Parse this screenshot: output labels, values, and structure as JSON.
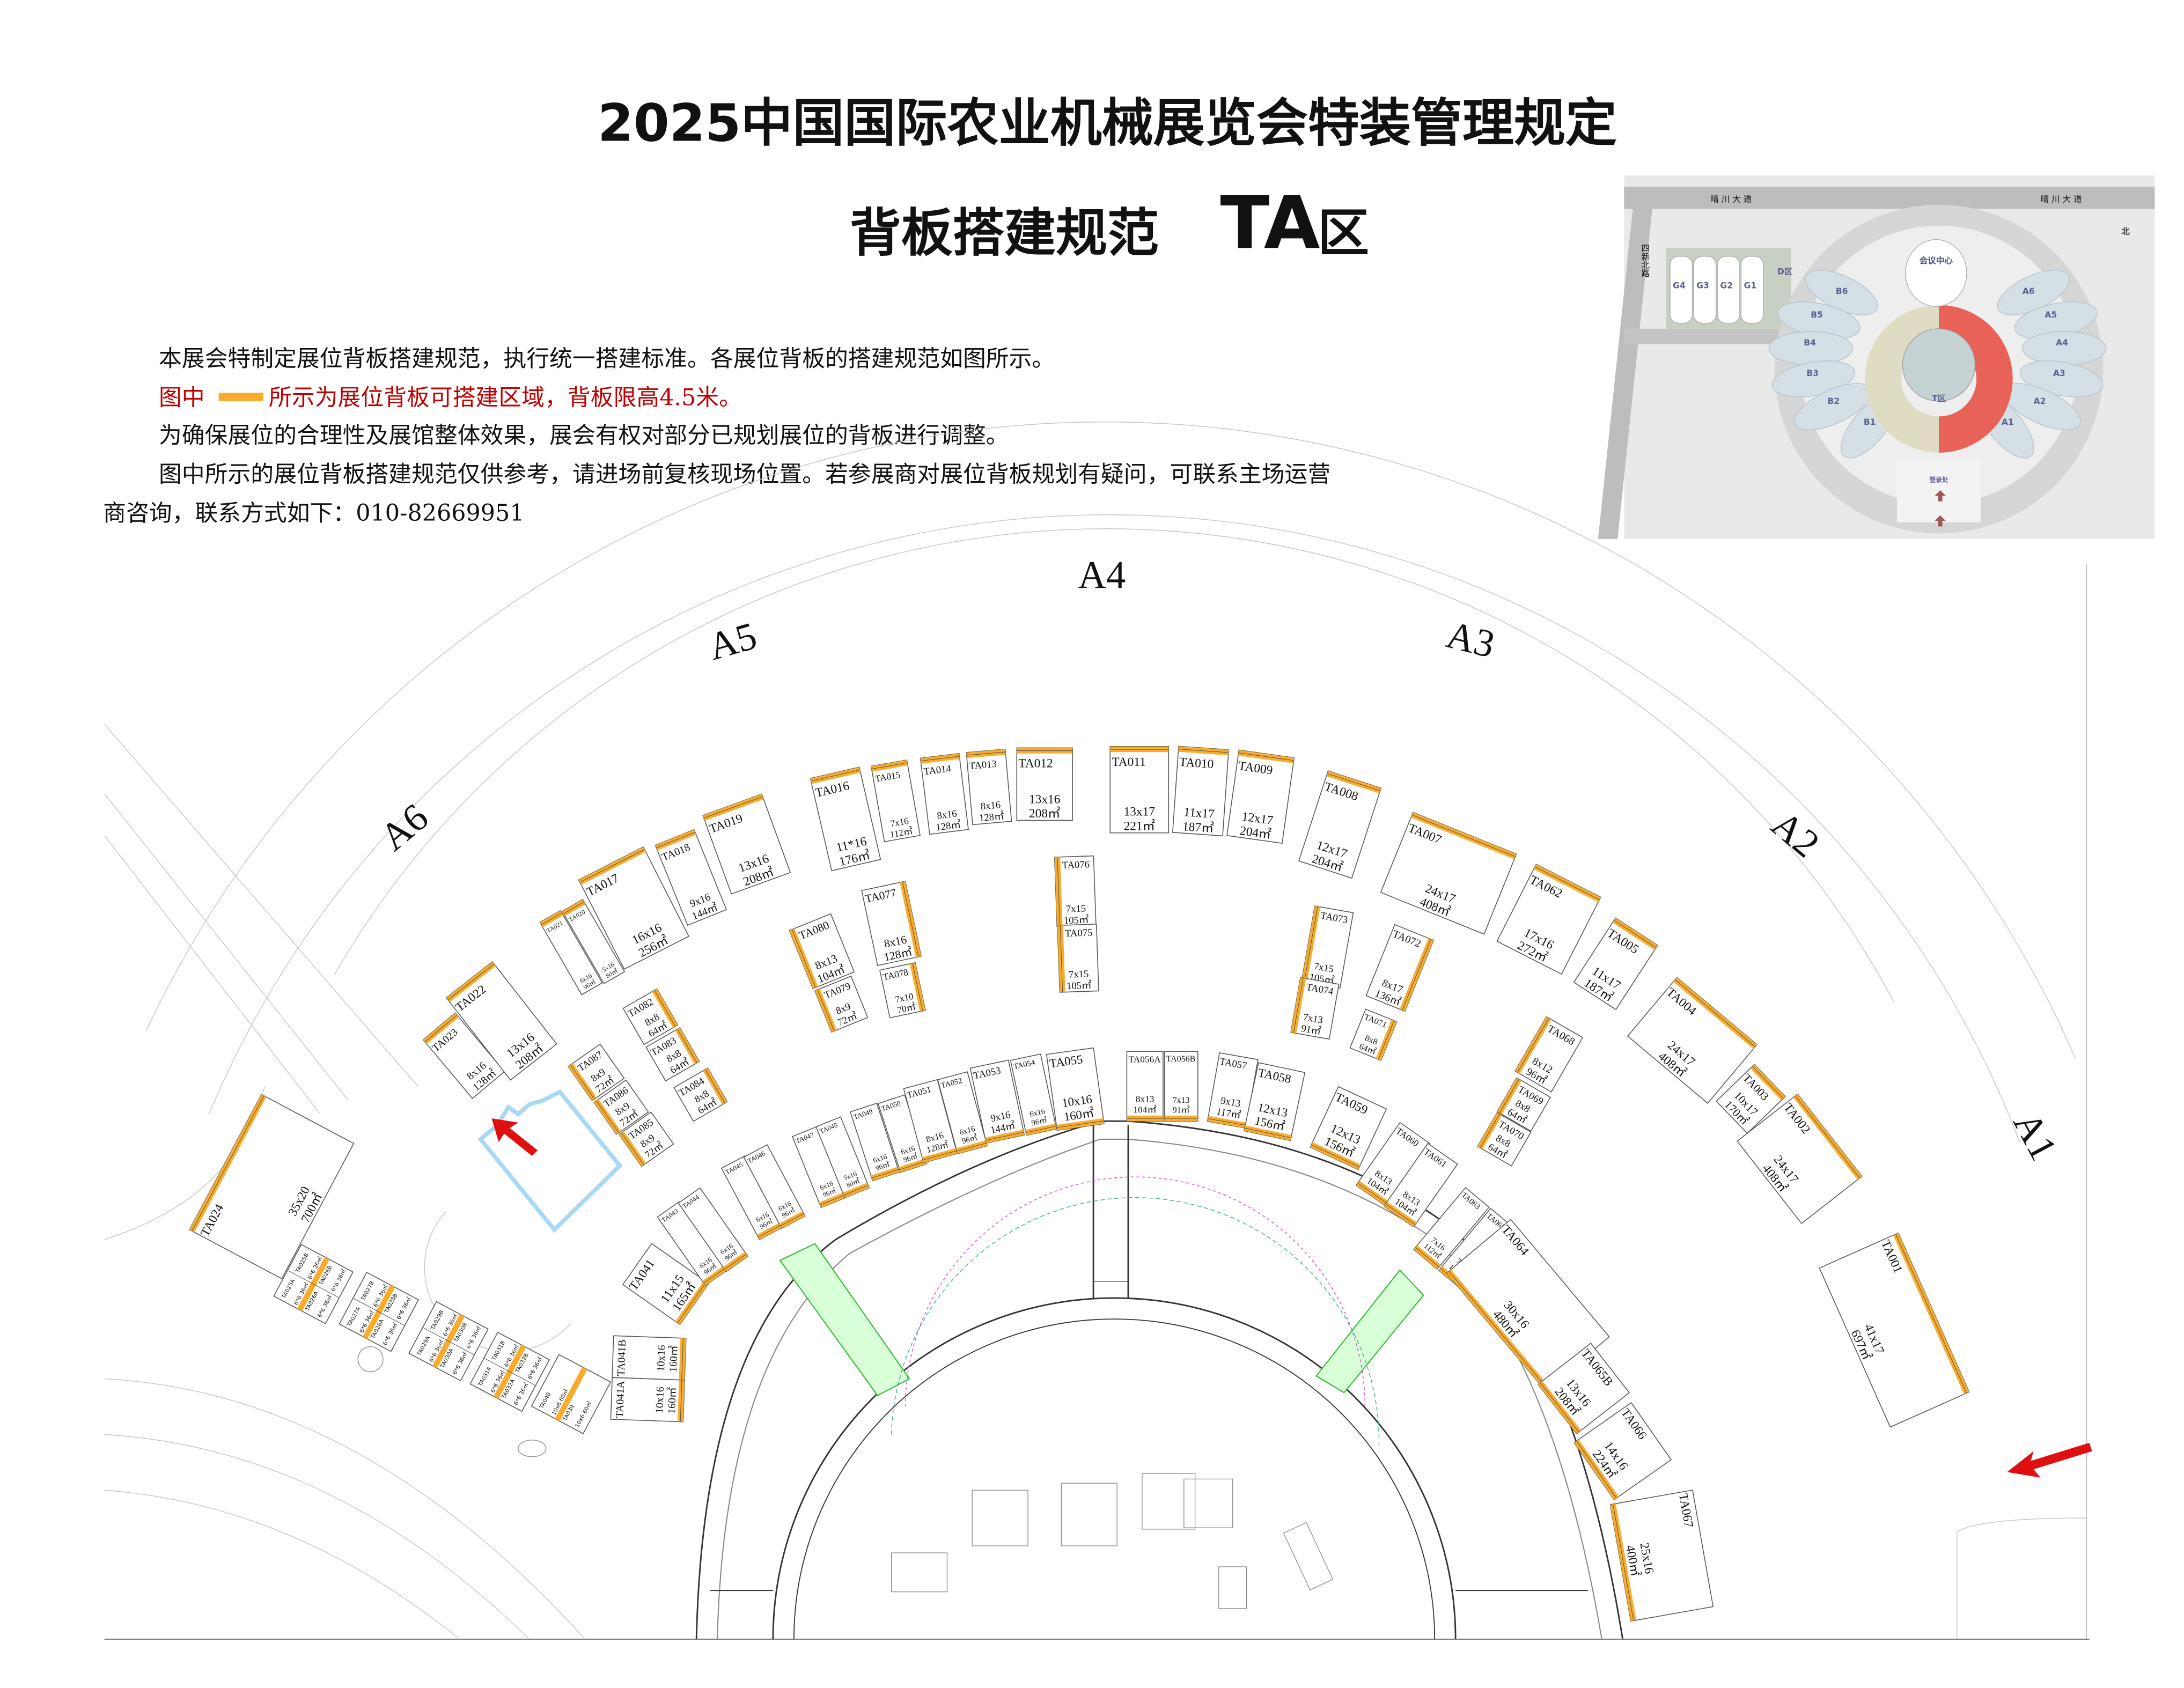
{
  "header": {
    "title": "2025中国国际农业机械展览会特装管理规定",
    "subtitle_prefix": "背板搭建规范",
    "subtitle_zone": "TA",
    "subtitle_suffix": "区"
  },
  "notes": {
    "line1": "本展会特制定展位背板搭建规范，执行统一搭建标准。各展位背板的搭建规范如图所示。",
    "legend_prefix": "图中",
    "legend_suffix": "所示为展位背板可搭建区域，背板限高4.5米。",
    "line3": "为确保展位的合理性及展馆整体效果，展会有权对部分已规划展位的背板进行调整。",
    "line4": "图中所示的展位背板搭建规范仅供参考，请进场前复核现场位置。若参展商对展位背板规划有疑问，可联系主场运营",
    "line5": "商咨询，联系方式如下：010-82669951"
  },
  "colors": {
    "backboard": "#f9ac2c",
    "legend_text": "#c00000",
    "highlight_zone": "#e8625a",
    "entrance_outline": "#a8d8f5",
    "arrow": "#e01010",
    "green_area": "#39e639"
  },
  "halls": [
    "A1",
    "A2",
    "A3",
    "A4",
    "A5",
    "A6"
  ],
  "inset_map": {
    "roads": [
      "晴 川 大 道",
      "晴 川 大 道",
      "四新北路"
    ],
    "buildings": [
      "会议中心",
      "D区",
      "G4",
      "G3",
      "G2",
      "G1",
      "登录处"
    ],
    "halls_b": [
      "B6",
      "B5",
      "B4",
      "B3",
      "B2",
      "B1"
    ],
    "halls_a": [
      "A6",
      "A5",
      "A4",
      "A3",
      "A2",
      "A1"
    ],
    "zone": "T区",
    "north": "北"
  },
  "booths": {
    "outer": [
      {
        "id": "TA023",
        "dims": "8x16",
        "area": "128㎡"
      },
      {
        "id": "TA022",
        "dims": "13x16",
        "area": "208㎡"
      },
      {
        "id": "TA021",
        "dims": "6x16",
        "area": "96㎡"
      },
      {
        "id": "TA020",
        "dims": "5x16",
        "area": "80㎡"
      },
      {
        "id": "TA017",
        "dims": "16x16",
        "area": "256㎡"
      },
      {
        "id": "TA018",
        "dims": "9x16",
        "area": "144㎡"
      },
      {
        "id": "TA019",
        "dims": "13x16",
        "area": "208㎡"
      },
      {
        "id": "TA016",
        "dims": "11*16",
        "area": "176㎡"
      },
      {
        "id": "TA015",
        "dims": "7x16",
        "area": "112㎡"
      },
      {
        "id": "TA014",
        "dims": "8x16",
        "area": "128㎡"
      },
      {
        "id": "TA013",
        "dims": "8x16",
        "area": "128㎡"
      },
      {
        "id": "TA012",
        "dims": "13x16",
        "area": "208㎡"
      },
      {
        "id": "TA011",
        "dims": "13x17",
        "area": "221㎡"
      },
      {
        "id": "TA010",
        "dims": "11x17",
        "area": "187㎡"
      },
      {
        "id": "TA009",
        "dims": "12x17",
        "area": "204㎡"
      },
      {
        "id": "TA008",
        "dims": "12x17",
        "area": "204㎡"
      },
      {
        "id": "TA007",
        "dims": "24x17",
        "area": "408㎡"
      },
      {
        "id": "TA062",
        "dims": "17x16",
        "area": "272㎡"
      },
      {
        "id": "TA005",
        "dims": "11x17",
        "area": "187㎡"
      },
      {
        "id": "TA004",
        "dims": "24x17",
        "area": "408㎡"
      },
      {
        "id": "TA003",
        "dims": "10x17",
        "area": "170㎡"
      },
      {
        "id": "TA002",
        "dims": "24x17",
        "area": "408㎡"
      },
      {
        "id": "TA001",
        "dims": "41x17",
        "area": "697㎡"
      },
      {
        "id": "TA024",
        "dims": "35x20",
        "area": "700㎡"
      }
    ],
    "middle": [
      {
        "id": "TA076",
        "dims": "7x15",
        "area": "105㎡"
      },
      {
        "id": "TA075",
        "dims": "7x15",
        "area": "105㎡"
      },
      {
        "id": "TA077",
        "dims": "8x16",
        "area": "128㎡"
      },
      {
        "id": "TA078",
        "dims": "7x10",
        "area": "70㎡"
      },
      {
        "id": "TA080",
        "dims": "8x13",
        "area": "104㎡"
      },
      {
        "id": "TA079",
        "dims": "8x9",
        "area": "72㎡"
      },
      {
        "id": "TA082",
        "dims": "8x8",
        "area": "64㎡"
      },
      {
        "id": "TA083",
        "dims": "8x8",
        "area": "64㎡"
      },
      {
        "id": "TA084",
        "dims": "8x8",
        "area": "64㎡"
      },
      {
        "id": "TA087",
        "dims": "8x9",
        "area": "72㎡"
      },
      {
        "id": "TA086",
        "dims": "8x9",
        "area": "72㎡"
      },
      {
        "id": "TA085",
        "dims": "8x9",
        "area": "72㎡"
      },
      {
        "id": "TA073",
        "dims": "7x15",
        "area": "105㎡"
      },
      {
        "id": "TA074",
        "dims": "7x13",
        "area": "91㎡"
      },
      {
        "id": "TA072",
        "dims": "8x17",
        "area": "136㎡"
      },
      {
        "id": "TA071",
        "dims": "8x8",
        "area": "64㎡"
      },
      {
        "id": "TA068",
        "dims": "8x12",
        "area": "96㎡"
      },
      {
        "id": "TA069",
        "dims": "8x8",
        "area": "64㎡"
      },
      {
        "id": "TA070",
        "dims": "8x8",
        "area": "64㎡"
      }
    ],
    "inner": [
      {
        "id": "TA041A",
        "dims": "10x16",
        "area": "160㎡"
      },
      {
        "id": "TA041B",
        "dims": "10x16",
        "area": "160㎡"
      },
      {
        "id": "TA041",
        "dims": "11x15",
        "area": "165㎡"
      },
      {
        "id": "TA043",
        "dims": "6x16",
        "area": "96㎡"
      },
      {
        "id": "TA044",
        "dims": "6x16",
        "area": "96㎡"
      },
      {
        "id": "TA045",
        "dims": "6x16",
        "area": "96㎡"
      },
      {
        "id": "TA046",
        "dims": "6x16",
        "area": "96㎡"
      },
      {
        "id": "TA047",
        "dims": "6x16",
        "area": "96㎡"
      },
      {
        "id": "TA048",
        "dims": "5x16",
        "area": "80㎡"
      },
      {
        "id": "TA049",
        "dims": "6x16",
        "area": "96㎡"
      },
      {
        "id": "TA050",
        "dims": "6x16",
        "area": "96㎡"
      },
      {
        "id": "TA051",
        "dims": "8x16",
        "area": "128㎡"
      },
      {
        "id": "TA052",
        "dims": "6x16",
        "area": "96㎡"
      },
      {
        "id": "TA053",
        "dims": "9x16",
        "area": "144㎡"
      },
      {
        "id": "TA054",
        "dims": "6x16",
        "area": "96㎡"
      },
      {
        "id": "TA055",
        "dims": "10x16",
        "area": "160㎡"
      },
      {
        "id": "TA056A",
        "dims": "8x13",
        "area": "104㎡"
      },
      {
        "id": "TA056B",
        "dims": "7x13",
        "area": "91㎡"
      },
      {
        "id": "TA057",
        "dims": "9x13",
        "area": "117㎡"
      },
      {
        "id": "TA058",
        "dims": "12x13",
        "area": "156㎡"
      },
      {
        "id": "TA059",
        "dims": "12x13",
        "area": "156㎡"
      },
      {
        "id": "TA060",
        "dims": "8x13",
        "area": "104㎡"
      },
      {
        "id": "TA061",
        "dims": "8x13",
        "area": "104㎡"
      },
      {
        "id": "TA063",
        "dims": "7x16",
        "area": "112㎡"
      },
      {
        "id": "TA065A",
        "dims": "7x16",
        "area": "112㎡"
      },
      {
        "id": "TA064",
        "dims": "30x16",
        "area": "480㎡"
      },
      {
        "id": "TA065B",
        "dims": "13x16",
        "area": "208㎡"
      },
      {
        "id": "TA066",
        "dims": "14x16",
        "area": "224㎡"
      },
      {
        "id": "TA067",
        "dims": "25x16",
        "area": "400㎡"
      }
    ],
    "small_groups": [
      {
        "ids": [
          "TA025A",
          "TA025B",
          "TA026A",
          "TA026B"
        ],
        "cell": "6*6 36㎡"
      },
      {
        "ids": [
          "TA027A",
          "TA027B",
          "TA028A",
          "TA028B"
        ],
        "cell": "6*6 36㎡"
      },
      {
        "ids": [
          "TA029A",
          "TA029B",
          "TA030A",
          "TA030B"
        ],
        "cell": "6*6 36㎡"
      },
      {
        "ids": [
          "TA031A",
          "TA031B",
          "TA032A",
          "TA032B"
        ],
        "cell": "6*6 36㎡"
      },
      {
        "ids": [
          "TA040",
          "",
          "TA039",
          ""
        ],
        "cell": "10x6 60㎡"
      }
    ]
  }
}
